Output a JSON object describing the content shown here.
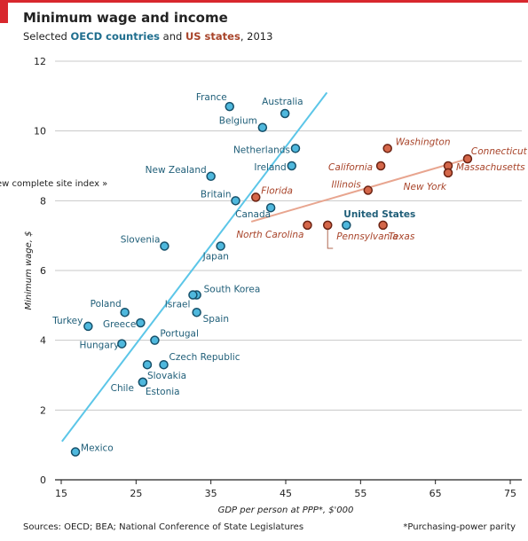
{
  "header": {
    "title": "Minimum wage and income",
    "subtitle_prefix": "Selected",
    "subtitle_oecd": "OECD countries",
    "subtitle_and": "and",
    "subtitle_us": "US states",
    "subtitle_suffix": ", 2013"
  },
  "overlay_link": "ew complete site index »",
  "footer": {
    "sources": "Sources: OECD; BEA; National Conference of State Legislatures",
    "note": "*Purchasing-power parity"
  },
  "colors": {
    "oecd_fill": "#4fb8dd",
    "oecd_stroke": "#16506a",
    "oecd_label": "#1f5e78",
    "oecd_trend": "#5cc6e8",
    "us_fill": "#d4674a",
    "us_stroke": "#6b2212",
    "us_label": "#a8442a",
    "us_trend": "#e8a58f",
    "grid": "#c8c8c8",
    "accent": "#d8272d"
  },
  "chart_data": {
    "type": "scatter",
    "title": "Minimum wage and income",
    "subtitle": "Selected OECD countries and US states, 2013",
    "xlabel": "GDP per person at PPP*, $'000",
    "ylabel": "Minimum wage, $",
    "xlim": [
      15,
      75
    ],
    "ylim": [
      0,
      12
    ],
    "xticks": [
      15,
      25,
      35,
      45,
      55,
      65,
      75
    ],
    "yticks": [
      0,
      2,
      4,
      6,
      8,
      10,
      12
    ],
    "grid": "horizontal",
    "series": [
      {
        "name": "OECD countries",
        "points": [
          {
            "label": "France",
            "x": 37.5,
            "y": 10.7
          },
          {
            "label": "Australia",
            "x": 44.9,
            "y": 10.5
          },
          {
            "label": "Belgium",
            "x": 41.9,
            "y": 10.1
          },
          {
            "label": "Netherlands",
            "x": 46.3,
            "y": 9.5
          },
          {
            "label": "Ireland",
            "x": 45.8,
            "y": 9.0
          },
          {
            "label": "New Zealand",
            "x": 35.0,
            "y": 8.7
          },
          {
            "label": "Britain",
            "x": 38.3,
            "y": 8.0
          },
          {
            "label": "Canada",
            "x": 43.0,
            "y": 7.8
          },
          {
            "label": "United States",
            "x": 53.1,
            "y": 7.3
          },
          {
            "label": "Slovenia",
            "x": 28.8,
            "y": 6.7
          },
          {
            "label": "Japan",
            "x": 36.3,
            "y": 6.7
          },
          {
            "label": "South Korea",
            "x": 33.1,
            "y": 5.3
          },
          {
            "label": "Israel",
            "x": 32.6,
            "y": 5.3
          },
          {
            "label": "Spain",
            "x": 33.1,
            "y": 4.8
          },
          {
            "label": "Poland",
            "x": 23.5,
            "y": 4.8
          },
          {
            "label": "Turkey",
            "x": 18.6,
            "y": 4.4
          },
          {
            "label": "Greece",
            "x": 25.6,
            "y": 4.5
          },
          {
            "label": "Portugal",
            "x": 27.5,
            "y": 4.0
          },
          {
            "label": "Hungary",
            "x": 23.1,
            "y": 3.9
          },
          {
            "label": "Czech Republic",
            "x": 28.7,
            "y": 3.3
          },
          {
            "label": "Slovakia",
            "x": 26.5,
            "y": 3.3
          },
          {
            "label": "Chile",
            "x": 25.9,
            "y": 2.8
          },
          {
            "label": "Estonia",
            "x": 25.9,
            "y": 2.8
          },
          {
            "label": "Mexico",
            "x": 16.9,
            "y": 0.8
          }
        ],
        "trend": [
          [
            15.1,
            1.1
          ],
          [
            50.5,
            11.1
          ]
        ]
      },
      {
        "name": "US states",
        "points": [
          {
            "label": "Washington",
            "x": 58.6,
            "y": 9.5
          },
          {
            "label": "Connecticut",
            "x": 69.3,
            "y": 9.2
          },
          {
            "label": "Massachusetts",
            "x": 66.7,
            "y": 9.0
          },
          {
            "label": "California",
            "x": 57.7,
            "y": 9.0
          },
          {
            "label": "New York",
            "x": 66.7,
            "y": 8.8
          },
          {
            "label": "Illinois",
            "x": 56.0,
            "y": 8.3
          },
          {
            "label": "Florida",
            "x": 41.0,
            "y": 8.1
          },
          {
            "label": "North Carolina",
            "x": 47.9,
            "y": 7.3
          },
          {
            "label": "Pennsylvania",
            "x": 50.6,
            "y": 7.3
          },
          {
            "label": "Texas",
            "x": 58.0,
            "y": 7.3
          }
        ],
        "trend": [
          [
            40.4,
            7.4
          ],
          [
            69.3,
            9.2
          ]
        ]
      }
    ]
  }
}
